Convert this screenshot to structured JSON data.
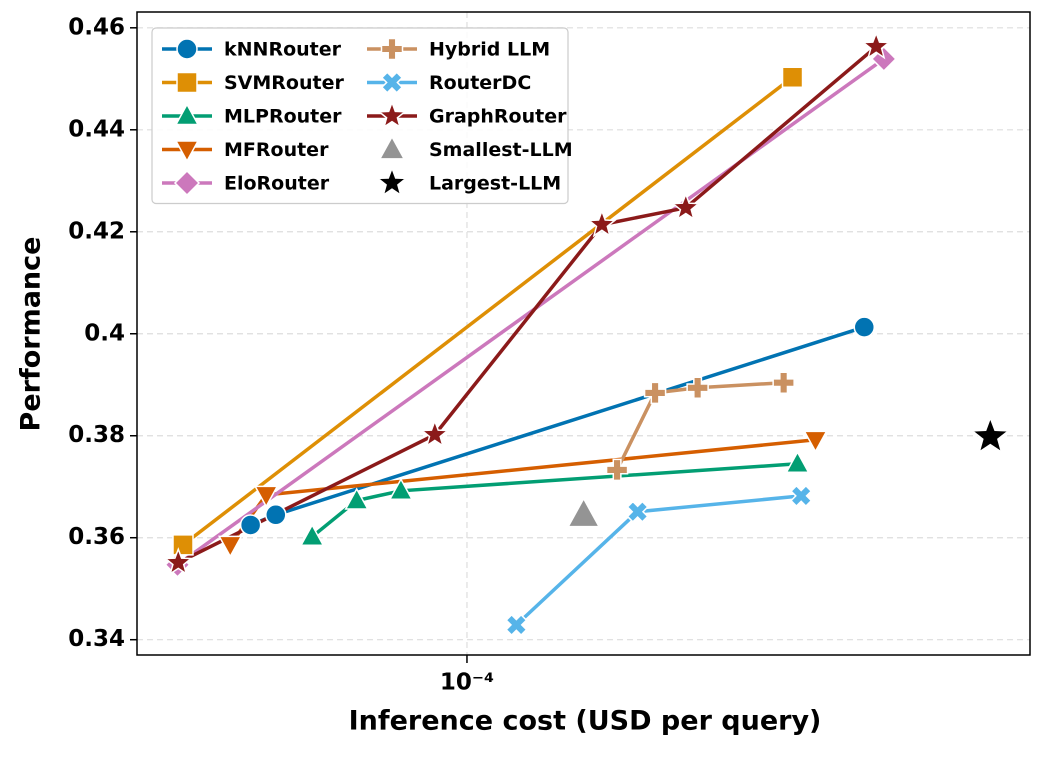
{
  "chart_data": {
    "type": "line",
    "log_x": true,
    "grid": true,
    "xlabel": "Inference cost (USD per query)",
    "ylabel": "Performance",
    "xlim": [
      3.71e-05,
      0.000543
    ],
    "ylim": [
      0.337,
      0.4631
    ],
    "xticks": [
      {
        "value": 0.0001,
        "label": "10⁻⁴"
      }
    ],
    "yticks": [
      0.34,
      0.36,
      0.38,
      0.4,
      0.42,
      0.44,
      0.46
    ],
    "legend": "upper left",
    "series": [
      {
        "name": "kNNRouter",
        "color": "#0173b2",
        "marker": "circle",
        "x": [
          5.22e-05,
          5.63e-05,
          0.00033
        ],
        "values": [
          0.3625,
          0.3645,
          0.4013
        ]
      },
      {
        "name": "SVMRouter",
        "color": "#de8f05",
        "marker": "square",
        "x": [
          4.26e-05,
          0.000266
        ],
        "values": [
          0.3586,
          0.4503
        ]
      },
      {
        "name": "MLPRouter",
        "color": "#029e73",
        "marker": "triangle-up",
        "x": [
          6.28e-05,
          7.18e-05,
          8.2e-05,
          0.00027
        ],
        "values": [
          0.3602,
          0.3673,
          0.3692,
          0.3745
        ]
      },
      {
        "name": "MFRouter",
        "color": "#d55e00",
        "marker": "triangle-down",
        "x": [
          4.91e-05,
          5.47e-05,
          0.000285
        ],
        "values": [
          0.3586,
          0.3684,
          0.3792
        ]
      },
      {
        "name": "EloRouter",
        "color": "#cc78bc",
        "marker": "diamond",
        "x": [
          4.19e-05,
          0.00035
        ],
        "values": [
          0.3547,
          0.4539
        ]
      },
      {
        "name": "Hybrid LLM",
        "color": "#ca9161",
        "marker": "plus",
        "x": [
          0.000157,
          0.000176,
          0.0002,
          0.000259
        ],
        "values": [
          0.3733,
          0.3884,
          0.3894,
          0.3904
        ]
      },
      {
        "name": "RouterDC",
        "color": "#56b4e9",
        "marker": "x",
        "x": [
          0.000116,
          0.000167,
          0.000273
        ],
        "values": [
          0.3429,
          0.3651,
          0.3682
        ]
      },
      {
        "name": "GraphRouter",
        "color": "#8b1a1a",
        "marker": "star",
        "x": [
          4.2e-05,
          9.08e-05,
          0.00015,
          0.000193,
          0.000342
        ],
        "values": [
          0.3551,
          0.3802,
          0.4214,
          0.4247,
          0.4563
        ]
      },
      {
        "name": "Smallest-LLM",
        "color": "#949494",
        "marker": "triangle-up",
        "x": [
          0.000142
        ],
        "values": [
          0.3645
        ]
      },
      {
        "name": "Largest-LLM",
        "color": "#000000",
        "marker": "star",
        "x": [
          0.000482
        ],
        "values": [
          0.3798
        ]
      }
    ]
  }
}
